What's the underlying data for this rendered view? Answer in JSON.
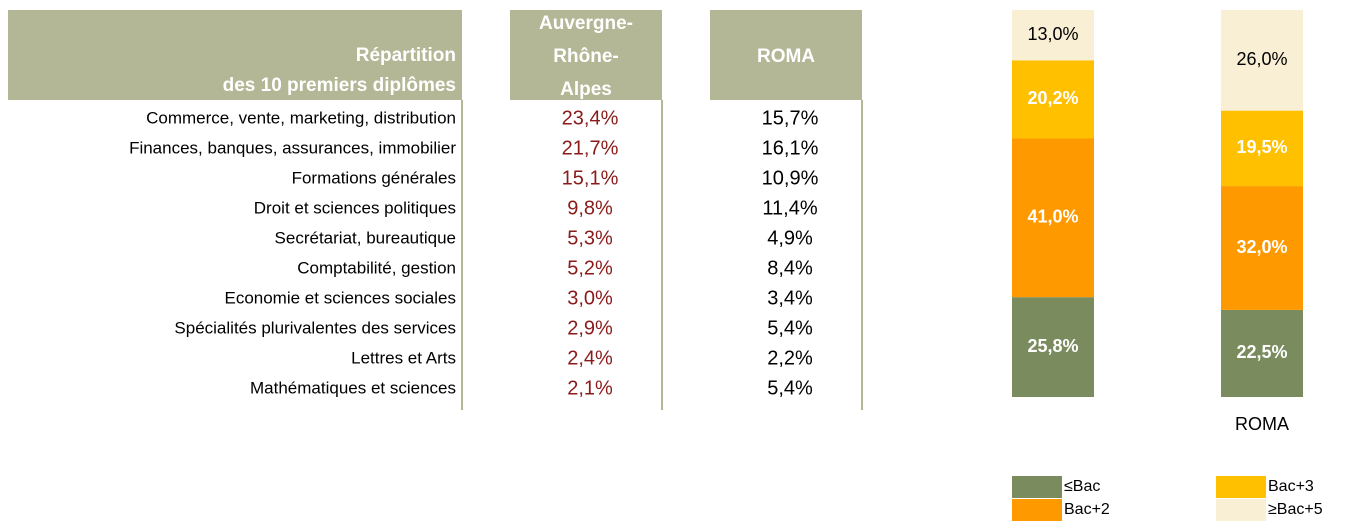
{
  "table": {
    "header": {
      "title": [
        "Répartition",
        "des 10 premiers diplômes"
      ],
      "col1": [
        "Auvergne-",
        "Rhône-",
        "Alpes"
      ],
      "col2": [
        "ROMA"
      ]
    },
    "rows": [
      [
        "Commerce, vente, marketing, distribution",
        "23,4%",
        "15,7%"
      ],
      [
        "Finances, banques, assurances, immobilier",
        "21,7%",
        "16,1%"
      ],
      [
        "Formations générales",
        "15,1%",
        "10,9%"
      ],
      [
        "Droit et sciences politiques",
        "9,8%",
        "11,4%"
      ],
      [
        "Secrétariat, bureautique",
        "5,3%",
        "4,9%"
      ],
      [
        "Comptabilité, gestion",
        "5,2%",
        "8,4%"
      ],
      [
        "Economie et sciences sociales",
        "3,0%",
        "3,4%"
      ],
      [
        "Spécialités plurivalentes des services",
        "2,9%",
        "5,4%"
      ],
      [
        "Lettres et Arts",
        "2,4%",
        "2,2%"
      ],
      [
        "Mathématiques et sciences",
        "2,1%",
        "5,4%"
      ]
    ]
  },
  "chart_data": {
    "type": "stacked_bar",
    "categories": [
      null,
      "ROMA"
    ],
    "series": [
      {
        "name": "≤Bac",
        "color": "#7a8c5e",
        "label_color": "#ffffff",
        "values": [
          25.8,
          22.5
        ],
        "value_labels": [
          "25,8%",
          "22,5%"
        ]
      },
      {
        "name": "Bac+2",
        "color": "#ff9900",
        "label_color": "#ffffff",
        "values": [
          41.0,
          32.0
        ],
        "value_labels": [
          "41,0%",
          "32,0%"
        ]
      },
      {
        "name": "Bac+3",
        "color": "#ffc000",
        "label_color": "#ffffff",
        "values": [
          20.2,
          19.5
        ],
        "value_labels": [
          "20,2%",
          "19,5%"
        ]
      },
      {
        "name": "≥Bac+5",
        "color": "#f8efd4",
        "label_color": "#000000",
        "values": [
          13.0,
          26.0
        ],
        "value_labels": [
          "13,0%",
          "26,0%"
        ]
      }
    ],
    "ylim": [
      0,
      100
    ]
  }
}
